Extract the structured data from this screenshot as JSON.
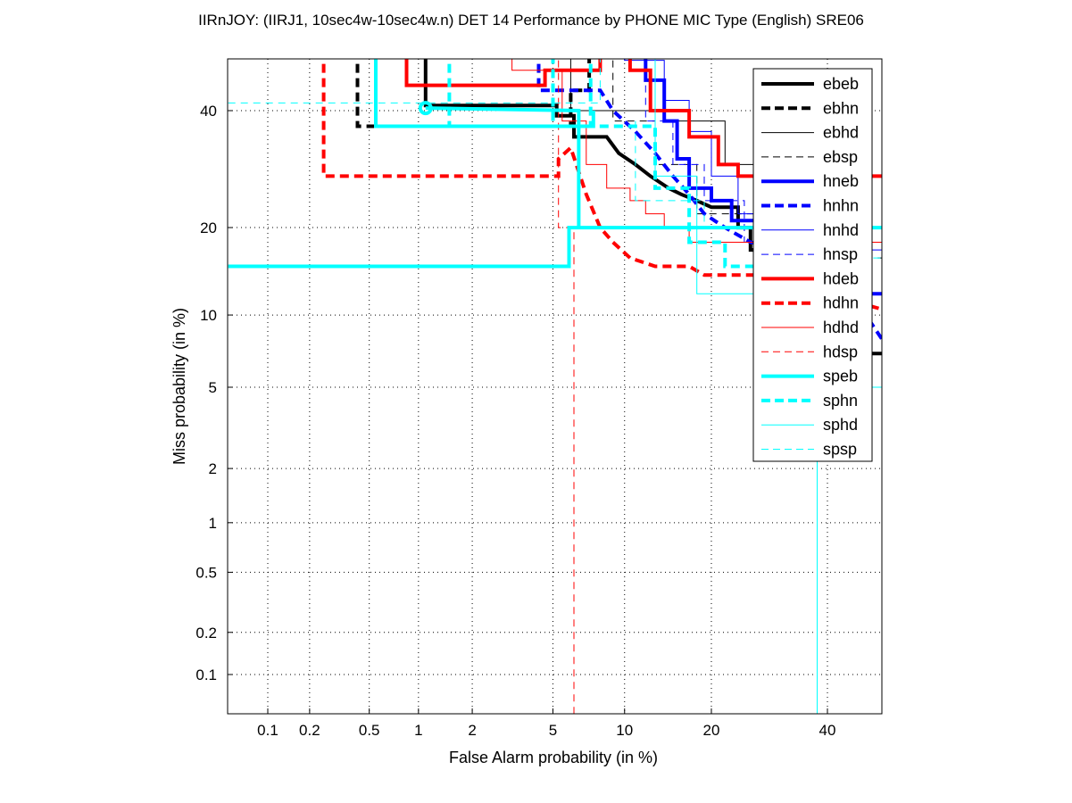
{
  "chart_data": {
    "type": "line",
    "title": "IIRnJOY: (IIRJ1, 10sec4w-10sec4w.n) DET 14 Performance by PHONE MIC Type (English) SRE06",
    "xlabel": "False Alarm probability (in %)",
    "ylabel": "Miss probability (in %)",
    "xscale": "probit",
    "yscale": "probit",
    "xlim": [
      0.05,
      55
    ],
    "ylim": [
      0.05,
      55
    ],
    "x_ticks": [
      0.1,
      0.2,
      0.5,
      1,
      2,
      5,
      10,
      20,
      40
    ],
    "x_tick_labels": [
      "0.1",
      "0.2",
      "0.5",
      "1",
      "2",
      "5",
      "10",
      "20",
      "40"
    ],
    "y_ticks": [
      0.1,
      0.2,
      0.5,
      1,
      2,
      5,
      10,
      20,
      40
    ],
    "y_tick_labels": [
      "0.1",
      "0.2",
      "0.5",
      "1",
      "2",
      "5",
      "10",
      "20",
      "40"
    ],
    "grid": true,
    "legend_position": "top-right",
    "marker": {
      "series": "speb",
      "x": 1.1,
      "y": 40.5,
      "color": "#00ffff"
    },
    "series": [
      {
        "name": "ebeb",
        "color": "#000000",
        "style": "solid",
        "weight": "thick",
        "points": [
          [
            1.1,
            55
          ],
          [
            1.1,
            41
          ],
          [
            5.2,
            41
          ],
          [
            5.2,
            39
          ],
          [
            6.2,
            39
          ],
          [
            6.2,
            35
          ],
          [
            8.5,
            35
          ],
          [
            9.5,
            32
          ],
          [
            11,
            30
          ],
          [
            12.5,
            28
          ],
          [
            14.5,
            26
          ],
          [
            16,
            25
          ],
          [
            18,
            24
          ],
          [
            20,
            23
          ],
          [
            24,
            23
          ],
          [
            24,
            20
          ],
          [
            26,
            20
          ],
          [
            26,
            17
          ],
          [
            35,
            17
          ],
          [
            35,
            13
          ],
          [
            48,
            13
          ],
          [
            48,
            7
          ],
          [
            55,
            7
          ]
        ]
      },
      {
        "name": "ebhn",
        "color": "#000000",
        "style": "dashed",
        "weight": "thick",
        "points": [
          [
            0.42,
            55
          ],
          [
            0.42,
            37
          ],
          [
            6,
            37
          ],
          [
            6,
            44
          ],
          [
            7.2,
            44
          ],
          [
            7.2,
            55
          ]
        ]
      },
      {
        "name": "ebhd",
        "color": "#000000",
        "style": "solid",
        "weight": "thin",
        "points": [
          [
            6,
            55
          ],
          [
            6,
            40
          ],
          [
            14,
            40
          ],
          [
            14,
            38
          ],
          [
            22,
            38
          ],
          [
            22,
            30
          ],
          [
            30,
            30
          ],
          [
            30,
            26
          ],
          [
            40,
            26
          ],
          [
            40,
            20
          ],
          [
            55,
            20
          ]
        ]
      },
      {
        "name": "ebsp",
        "color": "#000000",
        "style": "dashed",
        "weight": "thin",
        "points": [
          [
            9,
            55
          ],
          [
            9,
            38
          ],
          [
            13,
            38
          ],
          [
            13,
            30
          ],
          [
            18,
            30
          ],
          [
            18,
            22
          ],
          [
            28,
            22
          ],
          [
            28,
            16
          ],
          [
            55,
            16
          ]
        ]
      },
      {
        "name": "hneb",
        "color": "#0000ff",
        "style": "solid",
        "weight": "thick",
        "points": [
          [
            9,
            55
          ],
          [
            9,
            52
          ],
          [
            12,
            52
          ],
          [
            12,
            46
          ],
          [
            14,
            46
          ],
          [
            14,
            38
          ],
          [
            15.5,
            38
          ],
          [
            15.5,
            31
          ],
          [
            17,
            31
          ],
          [
            17,
            26
          ],
          [
            20,
            26
          ],
          [
            20,
            24
          ],
          [
            23,
            24
          ],
          [
            23,
            21
          ],
          [
            27,
            21
          ],
          [
            27,
            18
          ],
          [
            40,
            18
          ],
          [
            40,
            12
          ],
          [
            55,
            12
          ]
        ]
      },
      {
        "name": "hnhn",
        "color": "#0000ff",
        "style": "dashed",
        "weight": "thick",
        "points": [
          [
            4.3,
            55
          ],
          [
            4.3,
            44
          ],
          [
            8,
            44
          ],
          [
            9,
            40
          ],
          [
            11,
            36
          ],
          [
            13,
            32
          ],
          [
            15,
            28
          ],
          [
            17,
            25
          ],
          [
            19,
            22
          ],
          [
            22,
            20
          ],
          [
            26,
            18
          ],
          [
            40,
            16
          ],
          [
            55,
            6
          ]
        ]
      },
      {
        "name": "hnhd",
        "color": "#0000ff",
        "style": "solid",
        "weight": "thin",
        "points": [
          [
            10,
            55
          ],
          [
            10,
            50
          ],
          [
            14,
            50
          ],
          [
            14,
            42
          ],
          [
            17,
            42
          ],
          [
            17,
            36
          ],
          [
            20,
            36
          ],
          [
            20,
            28
          ],
          [
            24,
            28
          ],
          [
            24,
            22
          ],
          [
            32,
            22
          ],
          [
            32,
            17
          ],
          [
            55,
            17
          ]
        ]
      },
      {
        "name": "hnsp",
        "color": "#0000ff",
        "style": "dashed",
        "weight": "thin",
        "points": [
          [
            12,
            55
          ],
          [
            12,
            38
          ],
          [
            15,
            38
          ],
          [
            15,
            30
          ],
          [
            19,
            30
          ],
          [
            19,
            24
          ],
          [
            25,
            24
          ],
          [
            25,
            18
          ],
          [
            55,
            18
          ]
        ]
      },
      {
        "name": "hdeb",
        "color": "#ff0000",
        "style": "solid",
        "weight": "thick",
        "points": [
          [
            0.85,
            55
          ],
          [
            0.85,
            45
          ],
          [
            4.6,
            45
          ],
          [
            4.6,
            48
          ],
          [
            8,
            48
          ],
          [
            8,
            52
          ],
          [
            10.5,
            52
          ],
          [
            10.5,
            48
          ],
          [
            12.5,
            48
          ],
          [
            12.5,
            40
          ],
          [
            17,
            40
          ],
          [
            17,
            35
          ],
          [
            21,
            35
          ],
          [
            21,
            30
          ],
          [
            24,
            30
          ],
          [
            24,
            28
          ],
          [
            55,
            28
          ]
        ]
      },
      {
        "name": "hdhn",
        "color": "#ff0000",
        "style": "dashed",
        "weight": "thick",
        "points": [
          [
            0.25,
            55
          ],
          [
            0.25,
            28
          ],
          [
            5.3,
            28
          ],
          [
            5.3,
            31
          ],
          [
            6,
            33
          ],
          [
            7,
            25
          ],
          [
            8,
            20
          ],
          [
            9,
            18
          ],
          [
            10.5,
            16
          ],
          [
            13,
            15
          ],
          [
            17,
            15
          ],
          [
            19,
            14
          ],
          [
            28,
            14
          ],
          [
            40,
            12
          ],
          [
            55,
            10
          ]
        ]
      },
      {
        "name": "hdhd",
        "color": "#ff0000",
        "style": "solid",
        "weight": "thin",
        "points": [
          [
            3.2,
            55
          ],
          [
            3.2,
            48
          ],
          [
            5.5,
            48
          ],
          [
            5.5,
            38
          ],
          [
            7,
            38
          ],
          [
            7,
            30
          ],
          [
            8.5,
            30
          ],
          [
            8.5,
            26
          ],
          [
            10.5,
            26
          ],
          [
            10.5,
            24
          ],
          [
            12,
            24
          ],
          [
            12,
            22
          ],
          [
            14,
            22
          ],
          [
            14,
            20
          ],
          [
            17,
            20
          ],
          [
            17,
            18
          ],
          [
            55,
            18
          ]
        ]
      },
      {
        "name": "hdsp",
        "color": "#ff0000",
        "style": "dashed",
        "weight": "thin",
        "points": [
          [
            5.3,
            55
          ],
          [
            5.3,
            20
          ],
          [
            6.2,
            20
          ],
          [
            6.2,
            0.05
          ]
        ]
      },
      {
        "name": "speb",
        "color": "#00ffff",
        "style": "solid",
        "weight": "thick",
        "points": [
          [
            0.05,
            15
          ],
          [
            5.9,
            15
          ],
          [
            5.9,
            20
          ],
          [
            6.5,
            20
          ],
          [
            6.5,
            40
          ],
          [
            1.1,
            40.5
          ],
          [
            1.1,
            40.5
          ]
        ]
      },
      {
        "name": "sphn",
        "color": "#00ffff",
        "style": "dashed",
        "weight": "thick",
        "points": [
          [
            1.5,
            55
          ],
          [
            1.5,
            37
          ],
          [
            5,
            37
          ],
          [
            5,
            55
          ]
        ]
      },
      {
        "name": "sphd",
        "color": "#00ffff",
        "style": "solid",
        "weight": "thin",
        "points": [
          [
            38,
            0.05
          ],
          [
            38,
            5
          ],
          [
            55,
            5
          ]
        ]
      },
      {
        "name": "spsp",
        "color": "#00ffff",
        "style": "dashed",
        "weight": "thin",
        "points": [
          [
            0.05,
            41.5
          ],
          [
            8,
            41.5
          ],
          [
            8,
            55
          ]
        ]
      }
    ],
    "extra_segments": [
      {
        "series": "speb",
        "points": [
          [
            0.55,
            55
          ],
          [
            0.55,
            37
          ],
          [
            7.5,
            37
          ],
          [
            7.5,
            40
          ]
        ]
      },
      {
        "series": "speb",
        "points": [
          [
            6.6,
            20
          ],
          [
            55,
            20
          ]
        ]
      },
      {
        "series": "sphd",
        "points": [
          [
            13,
            55
          ],
          [
            13,
            28
          ],
          [
            18,
            28
          ],
          [
            18,
            12
          ],
          [
            30,
            12
          ],
          [
            30,
            20
          ]
        ]
      },
      {
        "series": "sphn",
        "points": [
          [
            7.3,
            55
          ],
          [
            7.3,
            37
          ],
          [
            13,
            37
          ],
          [
            13,
            26
          ],
          [
            17,
            26
          ],
          [
            17,
            18
          ],
          [
            22,
            18
          ],
          [
            22,
            15
          ],
          [
            30,
            15
          ]
        ]
      },
      {
        "series": "spsp",
        "points": [
          [
            11,
            38
          ],
          [
            11,
            24
          ],
          [
            19,
            24
          ],
          [
            19,
            20
          ],
          [
            48,
            20
          ],
          [
            48,
            16
          ],
          [
            55,
            16
          ]
        ]
      }
    ]
  }
}
